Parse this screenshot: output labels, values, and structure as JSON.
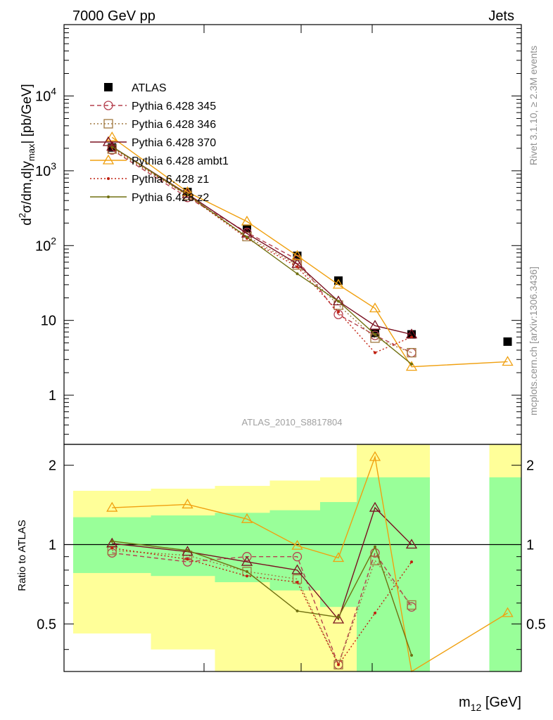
{
  "header": {
    "left": "7000 GeV pp",
    "right": "Jets"
  },
  "side_labels": {
    "rivet": "Rivet 3.1.10, ≥ 2.3M events",
    "mcplots": "mcplots.cern.ch [arXiv:1306.3436]"
  },
  "analysis_tag": "ATLAS_2010_S8817804",
  "chart_data": [
    {
      "type": "line",
      "panel": "main",
      "ylabel": "d²σ/dm,d|y_max| [pb/GeV]",
      "xlabel": "m12 [GeV]",
      "yscale": "log",
      "ylim": [
        0.22,
        90000
      ],
      "xlim": [
        0,
        10
      ],
      "ytick_labels": [
        {
          "v": 1,
          "label": "1"
        },
        {
          "v": 10,
          "label": "10"
        },
        {
          "v": 100,
          "label": "10^2"
        },
        {
          "v": 1000,
          "label": "10^3"
        },
        {
          "v": 10000,
          "label": "10^4"
        }
      ],
      "legend_placement": "upper-left",
      "series": [
        {
          "name": "ATLAS",
          "color": "#000000",
          "marker": "filled-square",
          "line": "none",
          "x": [
            1.05,
            2.7,
            4.0,
            5.1,
            6.0,
            6.8,
            7.6,
            9.7
          ],
          "y": [
            2050,
            520,
            168,
            73,
            34,
            6.8,
            6.5,
            5.2
          ]
        },
        {
          "name": "Pythia 6.428 345",
          "color": "#b5404f",
          "marker": "open-circle",
          "line": "dashed",
          "x": [
            1.05,
            2.7,
            4.0,
            5.1,
            6.0,
            6.8,
            7.6
          ],
          "y": [
            1900,
            440,
            150,
            65,
            12,
            6.3,
            3.7
          ]
        },
        {
          "name": "Pythia 6.428 346",
          "color": "#a07840",
          "marker": "open-square",
          "line": "dotted",
          "x": [
            1.05,
            2.7,
            4.0,
            5.1,
            6.0,
            6.8,
            7.6
          ],
          "y": [
            1950,
            470,
            132,
            55,
            16,
            5.8,
            3.7
          ]
        },
        {
          "name": "Pythia 6.428 370",
          "color": "#7a1020",
          "marker": "open-triangle",
          "line": "solid",
          "x": [
            1.05,
            2.7,
            4.0,
            5.1,
            6.0,
            6.8,
            7.6
          ],
          "y": [
            2100,
            490,
            145,
            57,
            18,
            8.5,
            6.5
          ]
        },
        {
          "name": "Pythia 6.428 ambt1",
          "color": "#f0a010",
          "marker": "open-triangle",
          "line": "solid",
          "x": [
            1.05,
            2.7,
            4.0,
            5.1,
            6.0,
            6.8,
            7.6,
            9.7
          ],
          "y": [
            2800,
            520,
            210,
            73,
            30,
            14.5,
            2.4,
            2.8
          ]
        },
        {
          "name": "Pythia 6.428 z1",
          "color": "#c02010",
          "marker": "small-dot",
          "line": "dotted",
          "x": [
            1.05,
            2.7,
            4.0,
            5.1,
            6.0,
            6.8,
            7.6
          ],
          "y": [
            2050,
            470,
            125,
            52,
            13,
            3.7,
            6.0
          ]
        },
        {
          "name": "Pythia 6.428 z2",
          "color": "#707010",
          "marker": "small-dot",
          "line": "solid",
          "x": [
            1.05,
            2.7,
            4.0,
            5.1,
            6.0,
            6.8,
            7.6
          ],
          "y": [
            2100,
            480,
            130,
            42,
            18,
            6.5,
            2.6
          ]
        }
      ]
    },
    {
      "type": "line",
      "panel": "ratio",
      "ylabel": "Ratio to ATLAS",
      "ylim": [
        0.33,
        2.4
      ],
      "ytick_labels": [
        {
          "v": 0.5,
          "label": "0.5"
        },
        {
          "v": 1,
          "label": "1"
        },
        {
          "v": 2,
          "label": "2"
        }
      ],
      "bands": {
        "outer_color": "#ffff99",
        "inner_color": "#99ff99",
        "bins": [
          {
            "x0": 0.2,
            "x1": 1.9,
            "outer": [
              0.46,
              1.6
            ],
            "inner": [
              0.78,
              1.27
            ]
          },
          {
            "x0": 1.9,
            "x1": 3.3,
            "outer": [
              0.4,
              1.63
            ],
            "inner": [
              0.76,
              1.29
            ]
          },
          {
            "x0": 3.3,
            "x1": 4.5,
            "outer": [
              0.33,
              1.67
            ],
            "inner": [
              0.72,
              1.32
            ]
          },
          {
            "x0": 4.5,
            "x1": 5.6,
            "outer": [
              0.33,
              1.75
            ],
            "inner": [
              0.67,
              1.35
            ]
          },
          {
            "x0": 5.6,
            "x1": 6.4,
            "outer": [
              0.33,
              1.8
            ],
            "inner": [
              0.58,
              1.45
            ]
          },
          {
            "x0": 6.4,
            "x1": 8.0,
            "outer": [
              0.33,
              2.4
            ],
            "inner": [
              0.33,
              1.8
            ]
          },
          {
            "x0": 9.3,
            "x1": 10.0,
            "outer": [
              0.33,
              2.4
            ],
            "inner": [
              0.33,
              1.8
            ]
          }
        ]
      },
      "series": [
        {
          "name": "Pythia 6.428 345",
          "color": "#b5404f",
          "marker": "open-circle",
          "line": "dashed",
          "x": [
            1.05,
            2.7,
            4.0,
            5.1,
            6.0,
            6.8,
            7.6
          ],
          "y": [
            0.93,
            0.86,
            0.9,
            0.9,
            0.35,
            0.93,
            0.58
          ]
        },
        {
          "name": "Pythia 6.428 346",
          "color": "#a07840",
          "marker": "open-square",
          "line": "dotted",
          "x": [
            1.05,
            2.7,
            4.0,
            5.1,
            6.0,
            6.8,
            7.6
          ],
          "y": [
            0.95,
            0.91,
            0.79,
            0.74,
            0.35,
            0.87,
            0.59
          ]
        },
        {
          "name": "Pythia 6.428 370",
          "color": "#7a1020",
          "marker": "open-triangle",
          "line": "solid",
          "x": [
            1.05,
            2.7,
            4.0,
            5.1,
            6.0,
            6.8,
            7.6
          ],
          "y": [
            1.01,
            0.94,
            0.86,
            0.8,
            0.52,
            1.38,
            1.0
          ]
        },
        {
          "name": "Pythia 6.428 ambt1",
          "color": "#f0a010",
          "marker": "open-triangle",
          "line": "solid",
          "x": [
            1.05,
            2.7,
            4.0,
            5.1,
            6.0,
            6.8,
            7.6,
            9.7
          ],
          "y": [
            1.38,
            1.42,
            1.25,
            0.99,
            0.89,
            2.15,
            0.3,
            0.55
          ]
        },
        {
          "name": "Pythia 6.428 z1",
          "color": "#c02010",
          "marker": "small-dot",
          "line": "dotted",
          "x": [
            1.05,
            2.7,
            4.0,
            5.1,
            6.0,
            6.8,
            7.6
          ],
          "y": [
            0.97,
            0.88,
            0.76,
            0.72,
            0.35,
            0.55,
            0.86
          ]
        },
        {
          "name": "Pythia 6.428 z2",
          "color": "#707010",
          "marker": "small-dot",
          "line": "solid",
          "x": [
            1.05,
            2.7,
            4.0,
            5.1,
            6.0,
            6.8,
            7.6
          ],
          "y": [
            1.03,
            0.95,
            0.79,
            0.56,
            0.53,
            0.98,
            0.38
          ]
        }
      ]
    }
  ]
}
